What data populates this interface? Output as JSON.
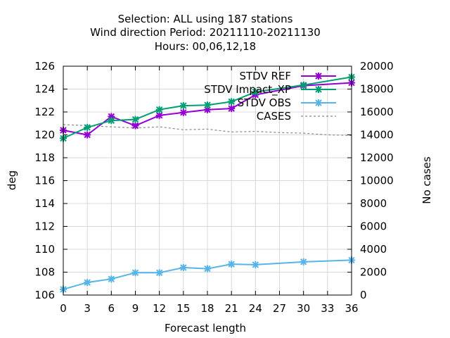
{
  "chart_data": {
    "type": "line",
    "title_lines": [
      "Selection: ALL using   187 stations",
      "Wind direction   Period: 20211110-20211130",
      "Hours:  00,06,12,18"
    ],
    "xlabel": "Forecast length",
    "ylabel": "deg",
    "y2label": "No cases",
    "x": [
      0,
      3,
      6,
      9,
      12,
      15,
      18,
      21,
      24,
      27,
      30,
      33,
      36
    ],
    "x_ticks": [
      "0",
      "3",
      "6",
      "9",
      "12",
      "15",
      "18",
      "21",
      "24",
      "27",
      "30",
      "33",
      "36"
    ],
    "xlim": [
      0,
      36
    ],
    "ylim": [
      106,
      126
    ],
    "y_ticks": [
      "106",
      "108",
      "110",
      "112",
      "114",
      "116",
      "118",
      "120",
      "122",
      "124",
      "126"
    ],
    "y2lim": [
      0,
      20000
    ],
    "y2_ticks": [
      "0",
      "2000",
      "4000",
      "6000",
      "8000",
      "10000",
      "12000",
      "14000",
      "16000",
      "18000",
      "20000"
    ],
    "grid": true,
    "legend_position": "top-right",
    "series": [
      {
        "name": "STDV REF",
        "color": "#9400d3",
        "axis": "left",
        "style": "solid",
        "marker": true,
        "x": [
          0,
          3,
          6,
          9,
          12,
          15,
          18,
          21,
          24,
          30,
          36
        ],
        "values": [
          120.4,
          120.0,
          121.6,
          120.8,
          121.7,
          121.95,
          122.2,
          122.3,
          123.5,
          124.3,
          124.55
        ]
      },
      {
        "name": "STDV Impact_XP",
        "color": "#009e73",
        "axis": "left",
        "style": "solid",
        "marker": true,
        "x": [
          0,
          3,
          6,
          9,
          12,
          15,
          18,
          21,
          24,
          30,
          36
        ],
        "values": [
          119.7,
          120.65,
          121.25,
          121.35,
          122.2,
          122.55,
          122.6,
          122.9,
          123.75,
          124.35,
          125.05
        ]
      },
      {
        "name": "STDV OBS",
        "color": "#56b4e9",
        "axis": "left",
        "style": "solid",
        "marker": true,
        "x": [
          0,
          3,
          6,
          9,
          12,
          15,
          18,
          21,
          24,
          30,
          36
        ],
        "values": [
          106.5,
          107.1,
          107.4,
          107.95,
          107.95,
          108.4,
          108.3,
          108.7,
          108.65,
          108.9,
          109.05
        ]
      },
      {
        "name": "CASES",
        "color": "#888888",
        "axis": "right",
        "style": "dashed",
        "marker": false,
        "x": [
          0,
          3,
          6,
          9,
          12,
          15,
          18,
          21,
          24,
          27,
          30,
          33,
          36
        ],
        "values": [
          14900,
          14800,
          14700,
          14600,
          14700,
          14450,
          14500,
          14250,
          14300,
          14200,
          14150,
          14000,
          13950
        ]
      }
    ]
  }
}
